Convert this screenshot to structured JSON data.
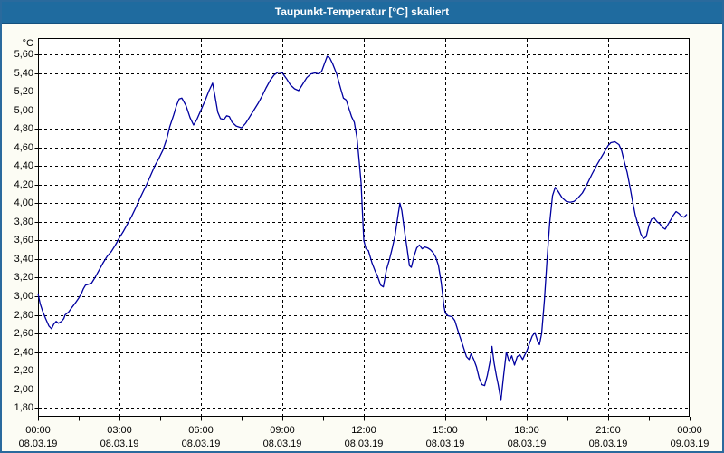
{
  "window": {
    "title": "Taupunkt-Temperatur [°C] skaliert"
  },
  "colors": {
    "titlebar_bg": "#1F6B9F",
    "titlebar_text": "#FFFFFF",
    "window_border": "#2A6A9D",
    "background": "#FCFCF4",
    "plot_background": "#FFFFFF",
    "grid": "#000000",
    "line": "#0000A0"
  },
  "chart_data": {
    "type": "line",
    "title": "Taupunkt-Temperatur [°C] skaliert",
    "y_unit": "°C",
    "y_min": 1.8,
    "y_max": 5.6,
    "y_step": 0.2,
    "y_tick_labels": [
      "5,60",
      "5,40",
      "5,20",
      "5,00",
      "4,80",
      "4,60",
      "4,40",
      "4,20",
      "4,00",
      "3,80",
      "3,60",
      "3,40",
      "3,20",
      "3,00",
      "2,80",
      "2,60",
      "2,40",
      "2,20",
      "2,00",
      "1,80"
    ],
    "x_hours_span": 24,
    "x_major_step_hours": 3,
    "x_minor_step_hours": 1.5,
    "grid": "dashed",
    "legend": "none",
    "x_ticks": [
      {
        "time": "00:00",
        "date": "08.03.19"
      },
      {
        "time": "03:00",
        "date": "08.03.19"
      },
      {
        "time": "06:00",
        "date": "08.03.19"
      },
      {
        "time": "09:00",
        "date": "08.03.19"
      },
      {
        "time": "12:00",
        "date": "08.03.19"
      },
      {
        "time": "15:00",
        "date": "08.03.19"
      },
      {
        "time": "18:00",
        "date": "08.03.19"
      },
      {
        "time": "21:00",
        "date": "08.03.19"
      },
      {
        "time": "00:00",
        "date": "09.03.19"
      }
    ],
    "series": [
      {
        "name": "Taupunkt-Temperatur",
        "color": "#0000A0",
        "points": [
          [
            0.0,
            3.03
          ],
          [
            0.08,
            2.92
          ],
          [
            0.17,
            2.84
          ],
          [
            0.28,
            2.76
          ],
          [
            0.4,
            2.68
          ],
          [
            0.5,
            2.65
          ],
          [
            0.58,
            2.7
          ],
          [
            0.67,
            2.73
          ],
          [
            0.75,
            2.71
          ],
          [
            0.87,
            2.73
          ],
          [
            0.95,
            2.76
          ],
          [
            1.0,
            2.8
          ],
          [
            1.13,
            2.83
          ],
          [
            1.25,
            2.88
          ],
          [
            1.38,
            2.93
          ],
          [
            1.5,
            2.98
          ],
          [
            1.6,
            3.03
          ],
          [
            1.67,
            3.08
          ],
          [
            1.75,
            3.12
          ],
          [
            1.87,
            3.13
          ],
          [
            1.97,
            3.14
          ],
          [
            2.1,
            3.2
          ],
          [
            2.25,
            3.28
          ],
          [
            2.4,
            3.36
          ],
          [
            2.55,
            3.43
          ],
          [
            2.7,
            3.48
          ],
          [
            2.85,
            3.55
          ],
          [
            3.0,
            3.63
          ],
          [
            3.15,
            3.7
          ],
          [
            3.3,
            3.78
          ],
          [
            3.45,
            3.86
          ],
          [
            3.6,
            3.95
          ],
          [
            3.75,
            4.05
          ],
          [
            3.9,
            4.14
          ],
          [
            4.0,
            4.2
          ],
          [
            4.15,
            4.3
          ],
          [
            4.3,
            4.4
          ],
          [
            4.45,
            4.48
          ],
          [
            4.6,
            4.57
          ],
          [
            4.75,
            4.7
          ],
          [
            4.85,
            4.82
          ],
          [
            5.0,
            4.95
          ],
          [
            5.1,
            5.05
          ],
          [
            5.2,
            5.12
          ],
          [
            5.3,
            5.13
          ],
          [
            5.45,
            5.05
          ],
          [
            5.6,
            4.92
          ],
          [
            5.73,
            4.84
          ],
          [
            5.85,
            4.9
          ],
          [
            6.0,
            5.0
          ],
          [
            6.15,
            5.1
          ],
          [
            6.3,
            5.21
          ],
          [
            6.43,
            5.29
          ],
          [
            6.52,
            5.15
          ],
          [
            6.62,
            4.98
          ],
          [
            6.72,
            4.91
          ],
          [
            6.85,
            4.9
          ],
          [
            6.95,
            4.94
          ],
          [
            7.05,
            4.93
          ],
          [
            7.15,
            4.87
          ],
          [
            7.3,
            4.83
          ],
          [
            7.5,
            4.81
          ],
          [
            7.65,
            4.86
          ],
          [
            7.8,
            4.93
          ],
          [
            7.95,
            5.0
          ],
          [
            8.1,
            5.07
          ],
          [
            8.25,
            5.15
          ],
          [
            8.4,
            5.24
          ],
          [
            8.55,
            5.32
          ],
          [
            8.7,
            5.38
          ],
          [
            8.85,
            5.41
          ],
          [
            9.0,
            5.4
          ],
          [
            9.15,
            5.34
          ],
          [
            9.3,
            5.27
          ],
          [
            9.45,
            5.23
          ],
          [
            9.6,
            5.21
          ],
          [
            9.75,
            5.28
          ],
          [
            9.9,
            5.35
          ],
          [
            10.05,
            5.39
          ],
          [
            10.2,
            5.4
          ],
          [
            10.35,
            5.39
          ],
          [
            10.45,
            5.42
          ],
          [
            10.55,
            5.5
          ],
          [
            10.65,
            5.58
          ],
          [
            10.75,
            5.56
          ],
          [
            10.85,
            5.5
          ],
          [
            11.0,
            5.39
          ],
          [
            11.15,
            5.23
          ],
          [
            11.25,
            5.13
          ],
          [
            11.35,
            5.11
          ],
          [
            11.45,
            5.02
          ],
          [
            11.55,
            4.93
          ],
          [
            11.65,
            4.87
          ],
          [
            11.75,
            4.7
          ],
          [
            11.83,
            4.45
          ],
          [
            11.9,
            4.22
          ],
          [
            11.95,
            3.9
          ],
          [
            12.0,
            3.6
          ],
          [
            12.08,
            3.51
          ],
          [
            12.17,
            3.49
          ],
          [
            12.3,
            3.36
          ],
          [
            12.42,
            3.27
          ],
          [
            12.5,
            3.22
          ],
          [
            12.62,
            3.12
          ],
          [
            12.72,
            3.1
          ],
          [
            12.83,
            3.28
          ],
          [
            12.95,
            3.4
          ],
          [
            13.05,
            3.52
          ],
          [
            13.15,
            3.65
          ],
          [
            13.25,
            3.85
          ],
          [
            13.33,
            4.0
          ],
          [
            13.4,
            3.92
          ],
          [
            13.5,
            3.7
          ],
          [
            13.6,
            3.5
          ],
          [
            13.68,
            3.33
          ],
          [
            13.75,
            3.31
          ],
          [
            13.85,
            3.43
          ],
          [
            13.95,
            3.52
          ],
          [
            14.05,
            3.55
          ],
          [
            14.15,
            3.51
          ],
          [
            14.25,
            3.53
          ],
          [
            14.35,
            3.52
          ],
          [
            14.45,
            3.5
          ],
          [
            14.55,
            3.47
          ],
          [
            14.65,
            3.42
          ],
          [
            14.75,
            3.33
          ],
          [
            14.85,
            3.15
          ],
          [
            14.95,
            2.9
          ],
          [
            15.0,
            2.82
          ],
          [
            15.1,
            2.79
          ],
          [
            15.25,
            2.78
          ],
          [
            15.35,
            2.74
          ],
          [
            15.5,
            2.6
          ],
          [
            15.65,
            2.47
          ],
          [
            15.78,
            2.35
          ],
          [
            15.88,
            2.32
          ],
          [
            15.95,
            2.38
          ],
          [
            16.05,
            2.32
          ],
          [
            16.15,
            2.24
          ],
          [
            16.25,
            2.12
          ],
          [
            16.35,
            2.05
          ],
          [
            16.45,
            2.04
          ],
          [
            16.55,
            2.15
          ],
          [
            16.65,
            2.3
          ],
          [
            16.72,
            2.46
          ],
          [
            16.8,
            2.28
          ],
          [
            16.88,
            2.15
          ],
          [
            16.95,
            2.05
          ],
          [
            17.05,
            1.88
          ],
          [
            17.15,
            2.15
          ],
          [
            17.25,
            2.4
          ],
          [
            17.35,
            2.3
          ],
          [
            17.45,
            2.36
          ],
          [
            17.55,
            2.26
          ],
          [
            17.65,
            2.35
          ],
          [
            17.75,
            2.37
          ],
          [
            17.85,
            2.32
          ],
          [
            17.93,
            2.37
          ],
          [
            18.0,
            2.41
          ],
          [
            18.1,
            2.49
          ],
          [
            18.2,
            2.57
          ],
          [
            18.3,
            2.61
          ],
          [
            18.4,
            2.52
          ],
          [
            18.47,
            2.48
          ],
          [
            18.55,
            2.6
          ],
          [
            18.65,
            2.95
          ],
          [
            18.75,
            3.4
          ],
          [
            18.85,
            3.8
          ],
          [
            18.95,
            4.08
          ],
          [
            19.05,
            4.17
          ],
          [
            19.15,
            4.13
          ],
          [
            19.3,
            4.06
          ],
          [
            19.45,
            4.02
          ],
          [
            19.6,
            4.01
          ],
          [
            19.75,
            4.02
          ],
          [
            19.9,
            4.06
          ],
          [
            20.05,
            4.11
          ],
          [
            20.2,
            4.19
          ],
          [
            20.4,
            4.31
          ],
          [
            20.6,
            4.42
          ],
          [
            20.8,
            4.52
          ],
          [
            21.0,
            4.62
          ],
          [
            21.1,
            4.65
          ],
          [
            21.25,
            4.66
          ],
          [
            21.4,
            4.63
          ],
          [
            21.5,
            4.56
          ],
          [
            21.6,
            4.44
          ],
          [
            21.7,
            4.33
          ],
          [
            21.8,
            4.18
          ],
          [
            21.9,
            4.02
          ],
          [
            22.0,
            3.87
          ],
          [
            22.1,
            3.77
          ],
          [
            22.2,
            3.67
          ],
          [
            22.3,
            3.62
          ],
          [
            22.4,
            3.64
          ],
          [
            22.5,
            3.76
          ],
          [
            22.6,
            3.83
          ],
          [
            22.7,
            3.84
          ],
          [
            22.8,
            3.8
          ],
          [
            22.9,
            3.78
          ],
          [
            23.0,
            3.74
          ],
          [
            23.1,
            3.72
          ],
          [
            23.2,
            3.77
          ],
          [
            23.3,
            3.82
          ],
          [
            23.4,
            3.87
          ],
          [
            23.5,
            3.91
          ],
          [
            23.6,
            3.89
          ],
          [
            23.7,
            3.86
          ],
          [
            23.8,
            3.85
          ],
          [
            23.9,
            3.88
          ]
        ]
      }
    ]
  }
}
